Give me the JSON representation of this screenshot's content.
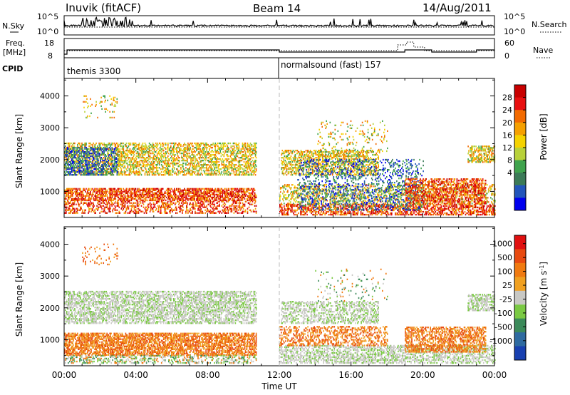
{
  "header": {
    "station": "Inuvik (fitACF)",
    "beam": "Beam 14",
    "date": "14/Aug/2011"
  },
  "sky_panel": {
    "left_label": "N.Sky",
    "right_label": "N.Search",
    "ticks": [
      "10^5",
      "10^0"
    ],
    "right_ticks": [
      "10^5",
      "10^0"
    ]
  },
  "freq_panel": {
    "left_label_1": "Freq.",
    "left_label_2": "[MHz]",
    "left_ticks": [
      "18",
      "8"
    ],
    "right_label": "Nave",
    "right_ticks": [
      "60",
      "0"
    ]
  },
  "cpid": {
    "label": "CPID",
    "modes": [
      {
        "name": "themis 3300",
        "start_hour": 0,
        "end_hour": 12
      },
      {
        "name": "normalsound (fast) 157",
        "start_hour": 12,
        "end_hour": 24
      }
    ]
  },
  "chart_data": [
    {
      "type": "heatmap",
      "name": "power",
      "xlabel": "",
      "ylabel": "Slant Range [km]",
      "xlim": [
        0,
        24
      ],
      "ylim": [
        180,
        4550
      ],
      "yticks": [
        1000,
        2000,
        3000,
        4000
      ],
      "colorbar": {
        "label": "Power [dB]",
        "ticks": [
          "28",
          "24",
          "20",
          "16",
          "12",
          "8",
          "4"
        ],
        "colors": [
          "#0000ee",
          "#2255bb",
          "#3b7a57",
          "#3fa34d",
          "#b8d13a",
          "#f5d200",
          "#f5a000",
          "#f26a00",
          "#e81010",
          "#c80000"
        ]
      }
    },
    {
      "type": "heatmap",
      "name": "velocity",
      "xlabel": "Time UT",
      "ylabel": "Slant Range [km]",
      "xlim": [
        0,
        24
      ],
      "ylim": [
        180,
        4550
      ],
      "yticks": [
        1000,
        2000,
        3000,
        4000
      ],
      "xticks": [
        "00:00",
        "04:00",
        "08:00",
        "12:00",
        "16:00",
        "20:00",
        "00:00"
      ],
      "colorbar": {
        "label": "Velocity [m s",
        "label_sup": "-1",
        "label_end": "]",
        "ticks": [
          "1000",
          "500",
          "100",
          "25",
          "-25",
          "-100",
          "-500",
          "-1000"
        ],
        "colors": [
          "#1840b0",
          "#2e6aa0",
          "#3b8a5a",
          "#7ac943",
          "#c8c8c4",
          "#f0a020",
          "#f07a10",
          "#e84a10",
          "#e01010"
        ]
      }
    }
  ]
}
